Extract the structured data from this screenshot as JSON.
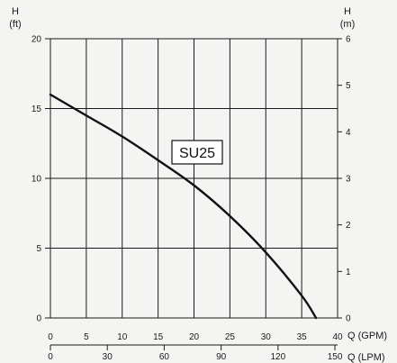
{
  "chart_data": {
    "type": "line",
    "title": "",
    "left_axis": {
      "title_top": "H",
      "title_bottom": "(ft)",
      "ylim": [
        0,
        20
      ],
      "ticks": [
        "0",
        "5",
        "10",
        "15",
        "20"
      ],
      "tick_values": [
        0,
        5,
        10,
        15,
        20
      ]
    },
    "right_axis": {
      "title_top": "H",
      "title_bottom": "(m)",
      "ylim": [
        0,
        6
      ],
      "ticks": [
        "0",
        "1",
        "2",
        "3",
        "4",
        "5",
        "6"
      ],
      "tick_values": [
        0,
        1,
        2,
        3,
        4,
        5,
        6
      ]
    },
    "x_axis_primary": {
      "label": "Q (GPM)",
      "xlim": [
        0,
        40
      ],
      "ticks": [
        "0",
        "5",
        "10",
        "15",
        "20",
        "25",
        "30",
        "35",
        "40"
      ],
      "tick_values": [
        0,
        5,
        10,
        15,
        20,
        25,
        30,
        35,
        40
      ]
    },
    "x_axis_secondary": {
      "label": "Q (LPM)",
      "xlim": [
        0,
        151.4
      ],
      "ticks": [
        "0",
        "30",
        "60",
        "90",
        "120",
        "150"
      ],
      "tick_values": [
        0,
        30,
        60,
        90,
        120,
        150
      ]
    },
    "series": [
      {
        "name": "SU25",
        "x": [
          0,
          5,
          10,
          15,
          20,
          25,
          30,
          35,
          37
        ],
        "y": [
          16,
          14.5,
          13,
          11.3,
          9.5,
          7.3,
          4.7,
          1.6,
          0
        ]
      }
    ],
    "grid": true
  }
}
